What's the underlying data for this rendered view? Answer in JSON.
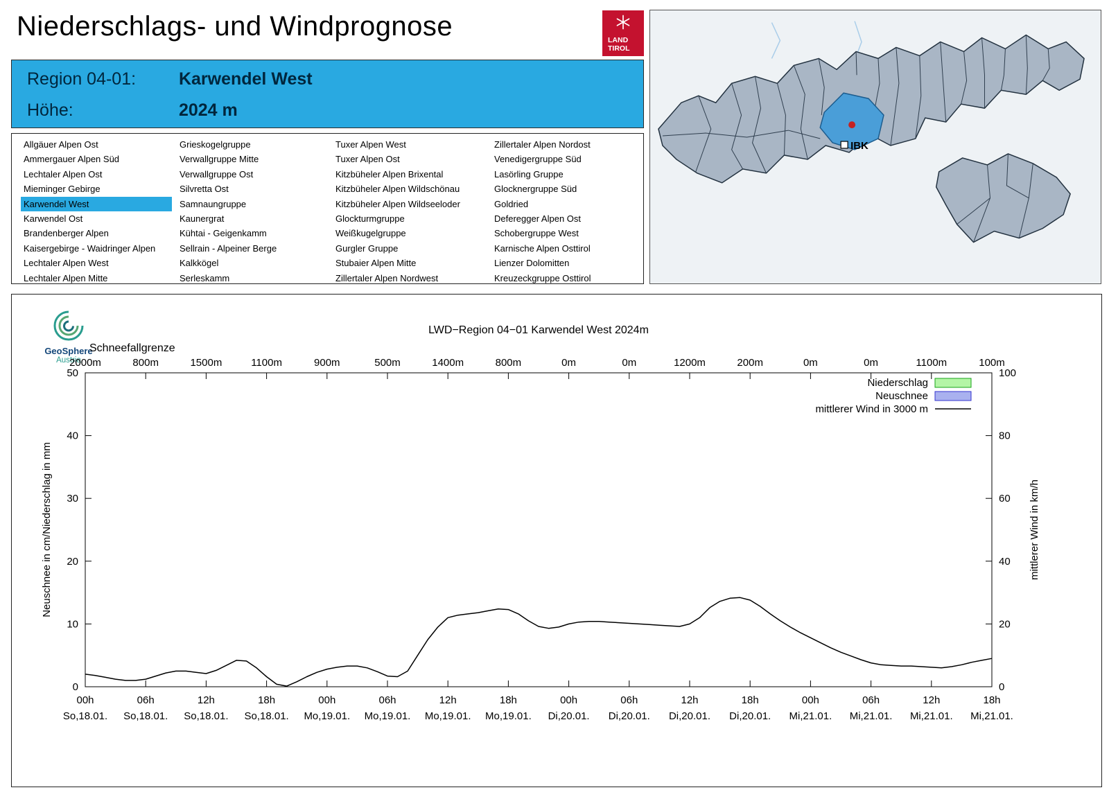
{
  "page": {
    "title": "Niederschlags- und Windprognose"
  },
  "logo": {
    "line1": "LAND",
    "line2": "TIROL"
  },
  "region_header": {
    "region_label": "Region 04-01:",
    "region_value": "Karwendel West",
    "altitude_label": "Höhe:",
    "altitude_value": "2024 m"
  },
  "region_list": {
    "selected": "Karwendel West",
    "columns": [
      [
        "Allgäuer Alpen Ost",
        "Ammergauer Alpen Süd",
        "Lechtaler Alpen Ost",
        "Mieminger Gebirge",
        "Karwendel West",
        "Karwendel Ost",
        "Brandenberger Alpen",
        "Kaisergebirge - Waidringer Alpen",
        "Lechtaler Alpen West",
        "Lechtaler Alpen Mitte"
      ],
      [
        "Grieskogelgruppe",
        "Verwallgruppe Mitte",
        "Verwallgruppe Ost",
        "Silvretta Ost",
        "Samnaungruppe",
        "Kaunergrat",
        "Kühtai - Geigenkamm",
        "Sellrain - Alpeiner Berge",
        "Kalkkögel",
        "Serleskamm"
      ],
      [
        "Tuxer Alpen West",
        "Tuxer Alpen Ost",
        "Kitzbüheler Alpen Brixental",
        "Kitzbüheler Alpen Wildschönau",
        "Kitzbüheler Alpen Wildseeloder",
        "Glockturmgruppe",
        "Weißkugelgruppe",
        "Gurgler Gruppe",
        "Stubaier Alpen Mitte",
        "Zillertaler Alpen Nordwest"
      ],
      [
        "Zillertaler Alpen Nordost",
        "Venedigergruppe Süd",
        "Lasörling Gruppe",
        "Glocknergruppe Süd",
        "Goldried",
        "Deferegger Alpen Ost",
        "Schobergruppe West",
        "Karnische Alpen Osttirol",
        "Lienzer Dolomitten",
        "Kreuzeckgruppe Osttirol"
      ]
    ]
  },
  "map": {
    "marker_label": "IBK"
  },
  "geosphere": {
    "name": "GeoSphere",
    "sub": "Austria"
  },
  "chart_data": {
    "type": "line",
    "title": "LWD−Region 04−01 Karwendel West 2024m",
    "grid": false,
    "top_axis": {
      "label": "Schneefallgrenze",
      "values": [
        "2000m",
        "800m",
        "1500m",
        "1100m",
        "900m",
        "500m",
        "1400m",
        "800m",
        "0m",
        "0m",
        "1200m",
        "200m",
        "0m",
        "0m",
        "1100m",
        "100m"
      ]
    },
    "x_ticks": {
      "hours": [
        "00h",
        "06h",
        "12h",
        "18h",
        "00h",
        "06h",
        "12h",
        "18h",
        "00h",
        "06h",
        "12h",
        "18h",
        "00h",
        "06h",
        "12h",
        "18h"
      ],
      "dates": [
        "So,18.01.",
        "So,18.01.",
        "So,18.01.",
        "So,18.01.",
        "Mo,19.01.",
        "Mo,19.01.",
        "Mo,19.01.",
        "Mo,19.01.",
        "Di,20.01.",
        "Di,20.01.",
        "Di,20.01.",
        "Di,20.01.",
        "Mi,21.01.",
        "Mi,21.01.",
        "Mi,21.01.",
        "Mi,21.01."
      ]
    },
    "y_left": {
      "label": "Neuschnee in cm/Niederschlag in mm",
      "min": 0,
      "max": 50,
      "ticks": [
        0,
        10,
        20,
        30,
        40,
        50
      ]
    },
    "y_right": {
      "label": "mittlerer Wind in km/h",
      "min": 0,
      "max": 100,
      "ticks": [
        0,
        20,
        40,
        60,
        80,
        100
      ]
    },
    "legend": [
      {
        "label": "Niederschlag",
        "type": "box",
        "fill": "#b4f5a6",
        "stroke": "#19a319"
      },
      {
        "label": "Neuschnee",
        "type": "box",
        "fill": "#a9b1ef",
        "stroke": "#3434cf"
      },
      {
        "label": "mittlerer Wind in 3000 m",
        "type": "line",
        "stroke": "#000000"
      }
    ],
    "precipitation_series": {
      "name": "Niederschlag",
      "unit": "mm",
      "values": []
    },
    "new_snow_series": {
      "name": "Neuschnee",
      "unit": "cm",
      "values": []
    },
    "wind_series": {
      "name": "mittlerer Wind in 3000 m",
      "axis": "right",
      "unit": "km/h",
      "start_hour_offset": 0,
      "step_hours": 1,
      "values_kmh": [
        4.0,
        3.6,
        3.0,
        2.4,
        2.0,
        2.0,
        2.4,
        3.4,
        4.4,
        5.0,
        5.0,
        4.6,
        4.2,
        5.2,
        6.8,
        8.4,
        8.2,
        6.0,
        3.2,
        0.8,
        0.2,
        1.6,
        3.2,
        4.6,
        5.6,
        6.2,
        6.6,
        6.6,
        6.0,
        4.8,
        3.4,
        3.2,
        5.0,
        10.0,
        15.0,
        19.0,
        22.0,
        22.8,
        23.2,
        23.6,
        24.2,
        24.8,
        24.6,
        23.2,
        21.0,
        19.2,
        18.6,
        19.0,
        20.0,
        20.6,
        20.8,
        20.8,
        20.6,
        20.4,
        20.2,
        20.0,
        19.8,
        19.6,
        19.4,
        19.2,
        20.0,
        22.0,
        25.2,
        27.2,
        28.2,
        28.4,
        27.6,
        25.6,
        23.2,
        21.0,
        19.0,
        17.2,
        15.6,
        14.0,
        12.4,
        11.0,
        9.8,
        8.6,
        7.6,
        7.0,
        6.8,
        6.6,
        6.6,
        6.4,
        6.2,
        6.0,
        6.4,
        7.0,
        7.8,
        8.4,
        9.0
      ]
    }
  }
}
